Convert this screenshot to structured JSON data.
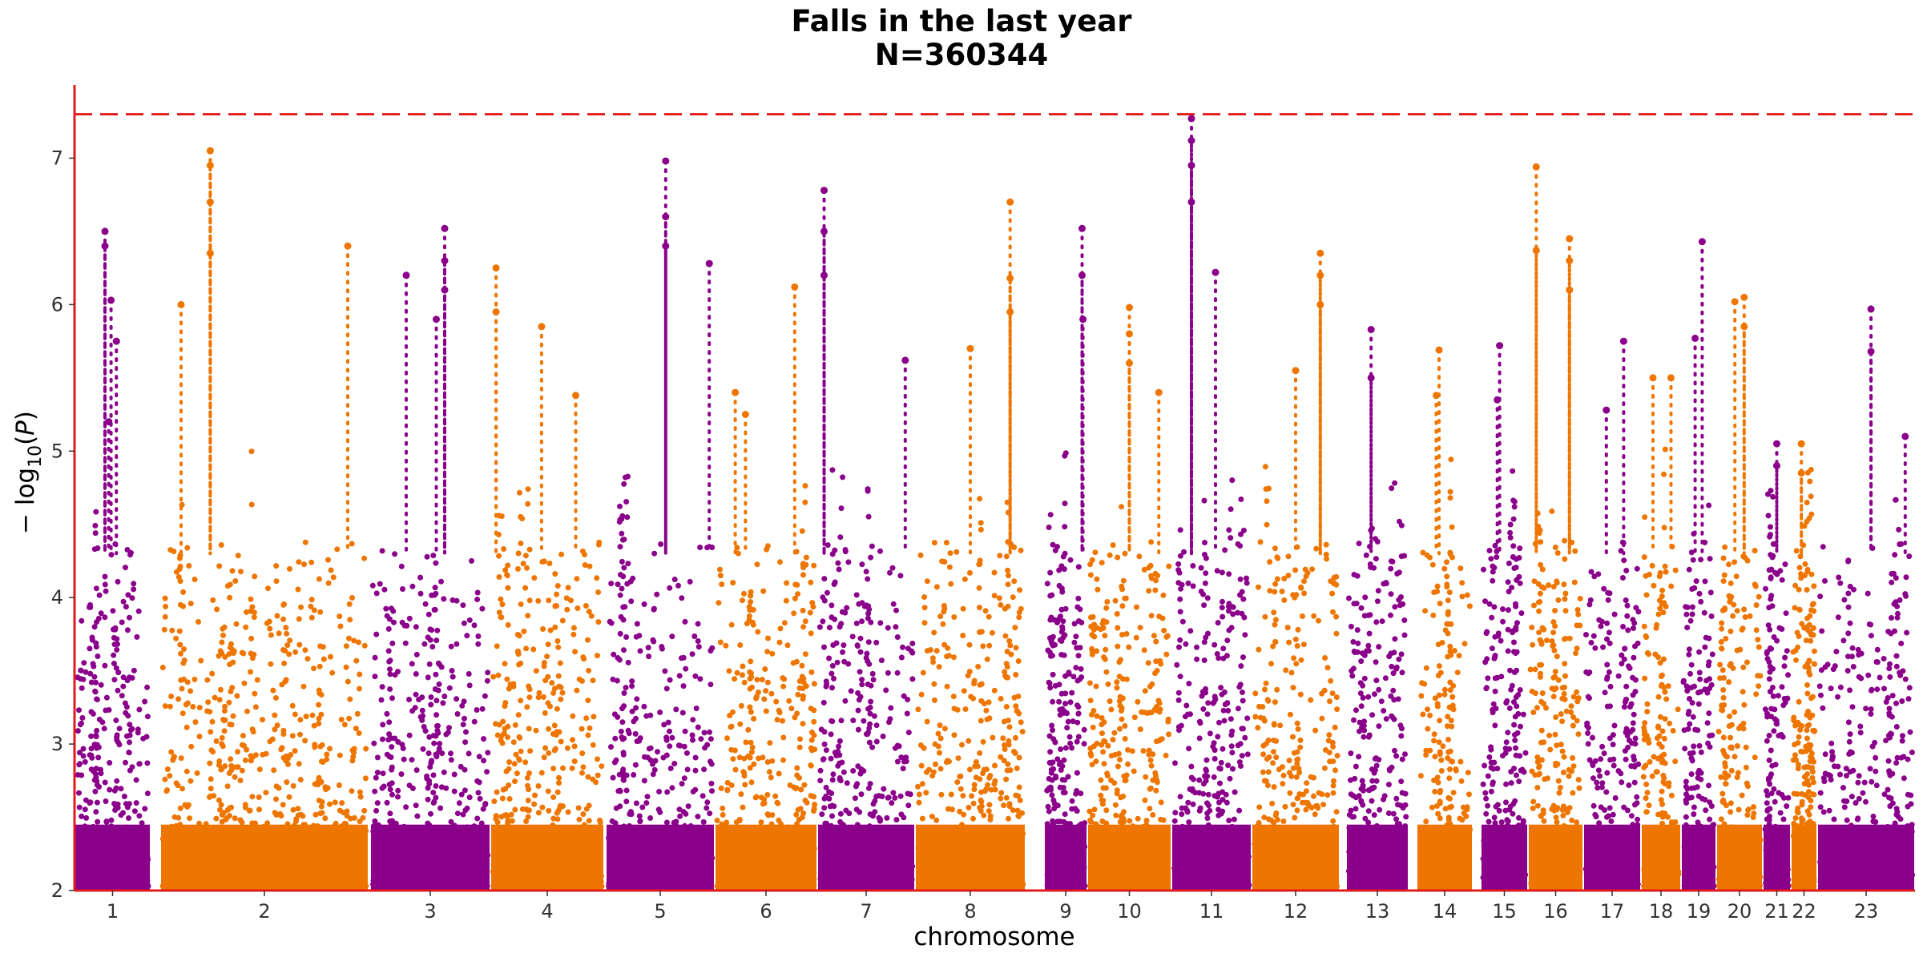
{
  "chart_data": {
    "type": "scatter",
    "title": "Falls in the last year",
    "subtitle": "N=360344",
    "xlabel": "chromosome",
    "ylabel": "−log10(P)",
    "ylim": [
      2,
      7.5
    ],
    "yticks": [
      2,
      3,
      4,
      5,
      6,
      7
    ],
    "significance_threshold": 7.3,
    "series_colors": [
      "#8B008B",
      "#EE7600"
    ],
    "threshold_color": "#E31A1C",
    "axis_color": "#E31A1C",
    "chromosomes": [
      {
        "label": "1",
        "lead_points": [
          [
            0.4,
            6.5
          ],
          [
            0.4,
            6.4
          ],
          [
            0.48,
            6.03
          ],
          [
            0.55,
            5.75
          ],
          [
            0.45,
            5.2
          ]
        ]
      },
      {
        "label": "2",
        "lead_points": [
          [
            0.24,
            7.05
          ],
          [
            0.24,
            6.95
          ],
          [
            0.24,
            6.7
          ],
          [
            0.24,
            6.35
          ],
          [
            0.9,
            6.4
          ],
          [
            0.1,
            6.0
          ]
        ]
      },
      {
        "label": "3",
        "lead_points": [
          [
            0.62,
            6.52
          ],
          [
            0.62,
            6.3
          ],
          [
            0.62,
            6.1
          ],
          [
            0.3,
            6.2
          ],
          [
            0.55,
            5.9
          ]
        ]
      },
      {
        "label": "4",
        "lead_points": [
          [
            0.05,
            6.25
          ],
          [
            0.05,
            5.95
          ],
          [
            0.45,
            5.85
          ],
          [
            0.75,
            5.38
          ]
        ]
      },
      {
        "label": "5",
        "lead_points": [
          [
            0.55,
            6.98
          ],
          [
            0.55,
            6.6
          ],
          [
            0.55,
            6.4
          ],
          [
            0.95,
            6.28
          ]
        ]
      },
      {
        "label": "6",
        "lead_points": [
          [
            0.78,
            6.12
          ],
          [
            0.2,
            5.4
          ],
          [
            0.3,
            5.25
          ]
        ]
      },
      {
        "label": "7",
        "lead_points": [
          [
            0.07,
            6.78
          ],
          [
            0.07,
            6.5
          ],
          [
            0.07,
            6.2
          ],
          [
            0.9,
            5.62
          ]
        ]
      },
      {
        "label": "8",
        "lead_points": [
          [
            0.86,
            6.7
          ],
          [
            0.86,
            6.18
          ],
          [
            0.86,
            5.95
          ],
          [
            0.5,
            5.7
          ]
        ]
      },
      {
        "label": "9",
        "lead_points": [
          [
            0.88,
            6.52
          ],
          [
            0.88,
            6.2
          ],
          [
            0.9,
            5.9
          ]
        ]
      },
      {
        "label": "10",
        "lead_points": [
          [
            0.5,
            5.98
          ],
          [
            0.5,
            5.8
          ],
          [
            0.5,
            5.6
          ],
          [
            0.85,
            5.4
          ]
        ]
      },
      {
        "label": "11",
        "lead_points": [
          [
            0.25,
            7.27
          ],
          [
            0.25,
            7.12
          ],
          [
            0.25,
            6.95
          ],
          [
            0.25,
            6.7
          ],
          [
            0.55,
            6.22
          ]
        ]
      },
      {
        "label": "12",
        "lead_points": [
          [
            0.78,
            6.35
          ],
          [
            0.78,
            6.2
          ],
          [
            0.78,
            6.0
          ],
          [
            0.5,
            5.55
          ]
        ]
      },
      {
        "label": "13",
        "lead_points": [
          [
            0.4,
            5.83
          ],
          [
            0.4,
            5.5
          ]
        ]
      },
      {
        "label": "14",
        "lead_points": [
          [
            0.4,
            5.69
          ],
          [
            0.35,
            5.38
          ]
        ]
      },
      {
        "label": "15",
        "lead_points": [
          [
            0.4,
            5.72
          ],
          [
            0.35,
            5.35
          ]
        ]
      },
      {
        "label": "16",
        "lead_points": [
          [
            0.15,
            6.94
          ],
          [
            0.15,
            6.37
          ],
          [
            0.75,
            6.45
          ],
          [
            0.75,
            6.3
          ],
          [
            0.75,
            6.1
          ]
        ]
      },
      {
        "label": "17",
        "lead_points": [
          [
            0.7,
            5.75
          ],
          [
            0.4,
            5.28
          ]
        ]
      },
      {
        "label": "18",
        "lead_points": [
          [
            0.3,
            5.5
          ],
          [
            0.75,
            5.5
          ]
        ]
      },
      {
        "label": "19",
        "lead_points": [
          [
            0.6,
            6.43
          ],
          [
            0.4,
            5.77
          ]
        ]
      },
      {
        "label": "20",
        "lead_points": [
          [
            0.6,
            6.05
          ],
          [
            0.4,
            6.02
          ],
          [
            0.6,
            5.85
          ]
        ]
      },
      {
        "label": "21",
        "lead_points": [
          [
            0.5,
            5.05
          ],
          [
            0.5,
            4.9
          ]
        ]
      },
      {
        "label": "22",
        "lead_points": [
          [
            0.4,
            5.05
          ],
          [
            0.4,
            4.85
          ]
        ]
      },
      {
        "label": "23",
        "lead_points": [
          [
            0.55,
            5.97
          ],
          [
            0.55,
            5.68
          ],
          [
            0.9,
            5.1
          ]
        ]
      }
    ]
  }
}
